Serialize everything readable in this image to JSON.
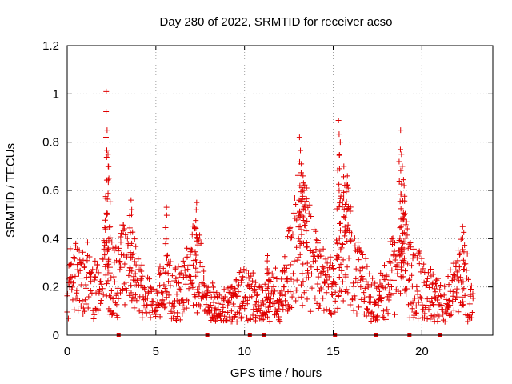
{
  "chart_data": {
    "type": "scatter",
    "title": "Day 280 of 2022, SRMTID for receiver acso",
    "xlabel": "GPS time / hours",
    "ylabel": "SRMTID / TECUs",
    "xlim": [
      0,
      24
    ],
    "ylim": [
      0,
      1.2
    ],
    "x_ticks": [
      0,
      5,
      10,
      15,
      20
    ],
    "y_ticks": [
      0,
      0.2,
      0.4,
      0.6,
      0.8,
      1,
      1.2
    ],
    "x_tick_labels": [
      "0",
      "5",
      "10",
      "15",
      "20"
    ],
    "y_tick_labels": [
      "0",
      "0.2",
      "0.4",
      "0.6",
      "0.8",
      "1",
      "1.2"
    ],
    "grid": true,
    "marker": "+",
    "color": "#e00000",
    "zero_markers_x": [
      2.9,
      7.9,
      10.3,
      11.1,
      15.1,
      17.4,
      19.3,
      21.0
    ],
    "series": [
      {
        "name": "SRMTID",
        "profile": [
          [
            0.0,
            0.2
          ],
          [
            0.5,
            0.22
          ],
          [
            1.0,
            0.24
          ],
          [
            1.5,
            0.2
          ],
          [
            1.9,
            0.16
          ],
          [
            2.2,
            0.3
          ],
          [
            2.6,
            0.22
          ],
          [
            3.0,
            0.28
          ],
          [
            3.5,
            0.3
          ],
          [
            4.0,
            0.2
          ],
          [
            4.5,
            0.14
          ],
          [
            5.0,
            0.14
          ],
          [
            5.5,
            0.22
          ],
          [
            6.0,
            0.16
          ],
          [
            6.5,
            0.18
          ],
          [
            7.0,
            0.26
          ],
          [
            7.4,
            0.28
          ],
          [
            7.8,
            0.14
          ],
          [
            8.5,
            0.11
          ],
          [
            9.0,
            0.12
          ],
          [
            9.5,
            0.14
          ],
          [
            10.0,
            0.2
          ],
          [
            10.5,
            0.14
          ],
          [
            11.0,
            0.12
          ],
          [
            11.5,
            0.18
          ],
          [
            12.0,
            0.14
          ],
          [
            12.5,
            0.28
          ],
          [
            13.0,
            0.4
          ],
          [
            13.5,
            0.36
          ],
          [
            14.0,
            0.28
          ],
          [
            14.5,
            0.22
          ],
          [
            15.0,
            0.2
          ],
          [
            15.4,
            0.36
          ],
          [
            15.8,
            0.4
          ],
          [
            16.2,
            0.26
          ],
          [
            16.8,
            0.2
          ],
          [
            17.3,
            0.14
          ],
          [
            17.8,
            0.16
          ],
          [
            18.2,
            0.26
          ],
          [
            18.6,
            0.22
          ],
          [
            19.0,
            0.32
          ],
          [
            19.5,
            0.22
          ],
          [
            20.0,
            0.2
          ],
          [
            20.5,
            0.16
          ],
          [
            21.0,
            0.14
          ],
          [
            21.5,
            0.14
          ],
          [
            22.0,
            0.22
          ],
          [
            22.5,
            0.24
          ],
          [
            22.9,
            0.1
          ]
        ],
        "peaks": [
          [
            2.2,
            1.01
          ],
          [
            2.25,
            0.85
          ],
          [
            2.3,
            0.75
          ],
          [
            2.35,
            0.65
          ],
          [
            13.1,
            0.82
          ],
          [
            13.2,
            0.71
          ],
          [
            13.3,
            0.66
          ],
          [
            13.5,
            0.61
          ],
          [
            15.3,
            0.89
          ],
          [
            15.4,
            0.8
          ],
          [
            15.6,
            0.7
          ],
          [
            15.8,
            0.66
          ],
          [
            18.8,
            0.85
          ],
          [
            18.85,
            0.75
          ],
          [
            18.9,
            0.7
          ],
          [
            19.0,
            0.62
          ],
          [
            3.6,
            0.56
          ],
          [
            5.6,
            0.53
          ],
          [
            7.3,
            0.55
          ],
          [
            11.3,
            0.33
          ],
          [
            22.3,
            0.45
          ]
        ]
      }
    ]
  }
}
